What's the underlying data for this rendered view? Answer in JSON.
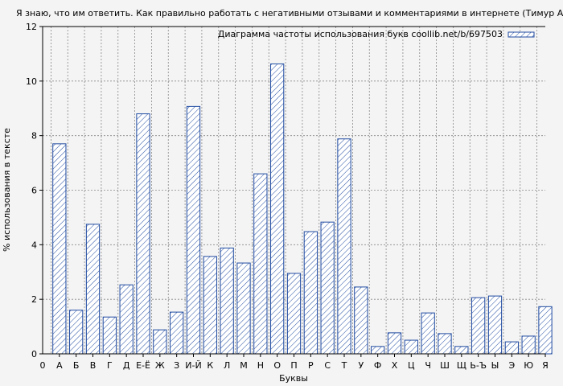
{
  "chart_data": {
    "type": "bar",
    "title": "Я знаю, что им ответить. Как правильно работать с негативными отзывами и комментариями в интернете (Тимур Асланов)",
    "xlabel": "Буквы",
    "ylabel": "% использования в тексте",
    "ylim": [
      0,
      12
    ],
    "yticks": [
      0,
      2,
      4,
      6,
      8,
      10,
      12
    ],
    "x_start_label": "0",
    "grid": true,
    "legend_position": "top-right",
    "series_name": "Диаграмма частоты использования букв coollib.net/b/697503",
    "categories": [
      "А",
      "Б",
      "В",
      "Г",
      "Д",
      "Е-Ё",
      "Ж",
      "З",
      "И-Й",
      "К",
      "Л",
      "М",
      "Н",
      "О",
      "П",
      "Р",
      "С",
      "Т",
      "У",
      "Ф",
      "Х",
      "Ц",
      "Ч",
      "Ш",
      "Щ",
      "Ь-Ъ",
      "Ы",
      "Э",
      "Ю",
      "Я"
    ],
    "values": [
      7.7,
      1.6,
      4.75,
      1.35,
      2.53,
      8.8,
      0.88,
      1.53,
      9.07,
      3.57,
      3.88,
      3.33,
      6.6,
      10.63,
      2.95,
      4.48,
      4.83,
      7.88,
      2.45,
      0.27,
      0.77,
      0.5,
      1.5,
      0.74,
      0.27,
      2.06,
      2.12,
      0.44,
      0.65,
      1.73
    ]
  },
  "colors": {
    "bar_stroke": "#1f4aa0",
    "hatch": "#1f4aa0",
    "grid": "#888888",
    "background": "#f4f4f4"
  }
}
